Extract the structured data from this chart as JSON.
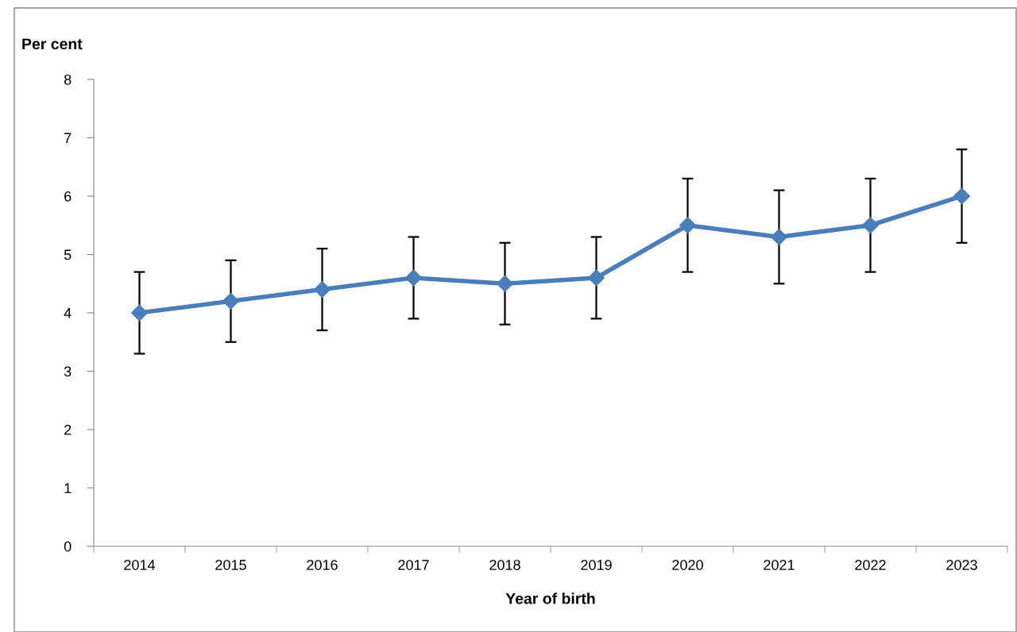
{
  "chart_data": {
    "type": "line",
    "xlabel": "Year of birth",
    "ylabel": "Per cent",
    "categories": [
      "2014",
      "2015",
      "2016",
      "2017",
      "2018",
      "2019",
      "2020",
      "2021",
      "2022",
      "2023"
    ],
    "series": [
      {
        "color": "#4a7ebb",
        "values": [
          4.0,
          4.2,
          4.4,
          4.6,
          4.5,
          4.6,
          5.5,
          5.3,
          5.5,
          6.0
        ],
        "errors": [
          0.7,
          0.7,
          0.7,
          0.7,
          0.7,
          0.7,
          0.8,
          0.8,
          0.8,
          0.8
        ]
      }
    ],
    "ylim": [
      0,
      8
    ],
    "yticks": [
      0,
      1,
      2,
      3,
      4,
      5,
      6,
      7,
      8
    ],
    "grid": false,
    "legend": false,
    "marker": "diamond",
    "line_style": "solid"
  }
}
